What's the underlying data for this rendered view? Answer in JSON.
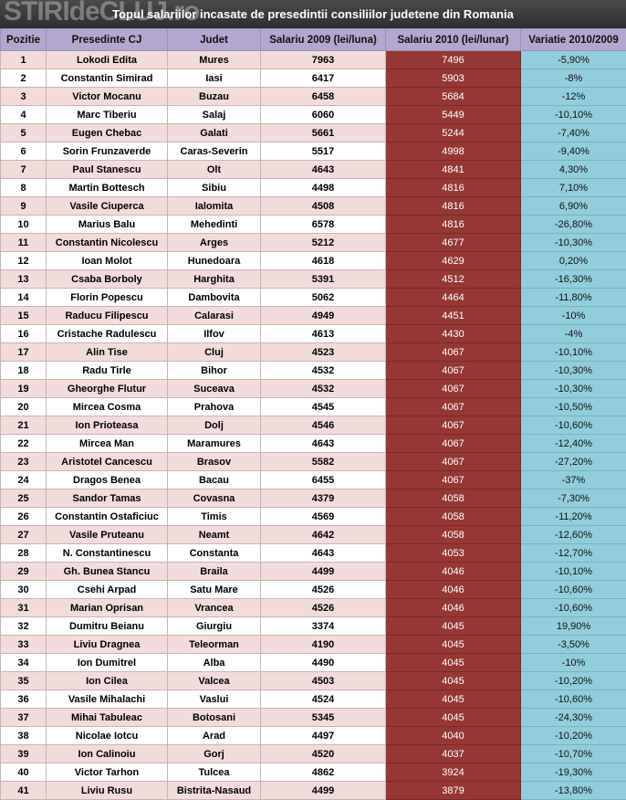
{
  "watermark": "STIRIdeCLUJ.ro",
  "title": "Topul salariilor incasate de presedintii consiliilor judetene din Romania",
  "table": {
    "header": [
      "Pozitie",
      "Presedinte CJ",
      "Judet",
      "Salariu 2009 (lei/luna)",
      "Salariu 2010 (lei/lunar)",
      "Variatie 2010/2009"
    ],
    "rows": [
      [
        "1",
        "Lokodi Edita",
        "Mures",
        "7963",
        "7496",
        "-5,90%"
      ],
      [
        "2",
        "Constantin Simirad",
        "Iasi",
        "6417",
        "5903",
        "-8%"
      ],
      [
        "3",
        "Victor Mocanu",
        "Buzau",
        "6458",
        "5684",
        "-12%"
      ],
      [
        "4",
        "Marc Tiberiu",
        "Salaj",
        "6060",
        "5449",
        "-10,10%"
      ],
      [
        "5",
        "Eugen Chebac",
        "Galati",
        "5661",
        "5244",
        "-7,40%"
      ],
      [
        "6",
        "Sorin Frunzaverde",
        "Caras-Severin",
        "5517",
        "4998",
        "-9,40%"
      ],
      [
        "7",
        "Paul Stanescu",
        "Olt",
        "4643",
        "4841",
        "4,30%"
      ],
      [
        "8",
        "Martin Bottesch",
        "Sibiu",
        "4498",
        "4816",
        "7,10%"
      ],
      [
        "9",
        "Vasile Ciuperca",
        "Ialomita",
        "4508",
        "4816",
        "6,90%"
      ],
      [
        "10",
        "Marius Balu",
        "Mehedinti",
        "6578",
        "4816",
        "-26,80%"
      ],
      [
        "11",
        "Constantin Nicolescu",
        "Arges",
        "5212",
        "4677",
        "-10,30%"
      ],
      [
        "12",
        "Ioan Molot",
        "Hunedoara",
        "4618",
        "4629",
        "0,20%"
      ],
      [
        "13",
        "Csaba Borboly",
        "Harghita",
        "5391",
        "4512",
        "-16,30%"
      ],
      [
        "14",
        "Florin Popescu",
        "Dambovita",
        "5062",
        "4464",
        "-11,80%"
      ],
      [
        "15",
        "Raducu Filipescu",
        "Calarasi",
        "4949",
        "4451",
        "-10%"
      ],
      [
        "16",
        "Cristache Radulescu",
        "Ilfov",
        "4613",
        "4430",
        "-4%"
      ],
      [
        "17",
        "Alin Tise",
        "Cluj",
        "4523",
        "4067",
        "-10,10%"
      ],
      [
        "18",
        "Radu Tirle",
        "Bihor",
        "4532",
        "4067",
        "-10,30%"
      ],
      [
        "19",
        "Gheorghe Flutur",
        "Suceava",
        "4532",
        "4067",
        "-10,30%"
      ],
      [
        "20",
        "Mircea Cosma",
        "Prahova",
        "4545",
        "4067",
        "-10,50%"
      ],
      [
        "21",
        "Ion Prioteasa",
        "Dolj",
        "4546",
        "4067",
        "-10,60%"
      ],
      [
        "22",
        "Mircea Man",
        "Maramures",
        "4643",
        "4067",
        "-12,40%"
      ],
      [
        "23",
        "Aristotel Cancescu",
        "Brasov",
        "5582",
        "4067",
        "-27,20%"
      ],
      [
        "24",
        "Dragos Benea",
        "Bacau",
        "6455",
        "4067",
        "-37%"
      ],
      [
        "25",
        "Sandor Tamas",
        "Covasna",
        "4379",
        "4058",
        "-7,30%"
      ],
      [
        "26",
        "Constantin Ostaficiuc",
        "Timis",
        "4569",
        "4058",
        "-11,20%"
      ],
      [
        "27",
        "Vasile Pruteanu",
        "Neamt",
        "4642",
        "4058",
        "-12,60%"
      ],
      [
        "28",
        "N. Constantinescu",
        "Constanta",
        "4643",
        "4053",
        "-12,70%"
      ],
      [
        "29",
        "Gh. Bunea Stancu",
        "Braila",
        "4499",
        "4046",
        "-10,10%"
      ],
      [
        "30",
        "Csehi Arpad",
        "Satu Mare",
        "4526",
        "4046",
        "-10,60%"
      ],
      [
        "31",
        "Marian Oprisan",
        "Vrancea",
        "4526",
        "4046",
        "-10,60%"
      ],
      [
        "32",
        "Dumitru Beianu",
        "Giurgiu",
        "3374",
        "4045",
        "19,90%"
      ],
      [
        "33",
        "Liviu Dragnea",
        "Teleorman",
        "4190",
        "4045",
        "-3,50%"
      ],
      [
        "34",
        "Ion Dumitrel",
        "Alba",
        "4490",
        "4045",
        "-10%"
      ],
      [
        "35",
        "Ion Cilea",
        "Valcea",
        "4503",
        "4045",
        "-10,20%"
      ],
      [
        "36",
        "Vasile Mihalachi",
        "Vaslui",
        "4524",
        "4045",
        "-10,60%"
      ],
      [
        "37",
        "Mihai Tabuleac",
        "Botosani",
        "5345",
        "4045",
        "-24,30%"
      ],
      [
        "38",
        "Nicolae Iotcu",
        "Arad",
        "4497",
        "4040",
        "-10,20%"
      ],
      [
        "39",
        "Ion Calinoiu",
        "Gorj",
        "4520",
        "4037",
        "-10,70%"
      ],
      [
        "40",
        "Victor Tarhon",
        "Tulcea",
        "4862",
        "3924",
        "-19,30%"
      ],
      [
        "41",
        "Liviu Rusu",
        "Bistrita-Nasaud",
        "4499",
        "3879",
        "-13,80%"
      ]
    ]
  }
}
